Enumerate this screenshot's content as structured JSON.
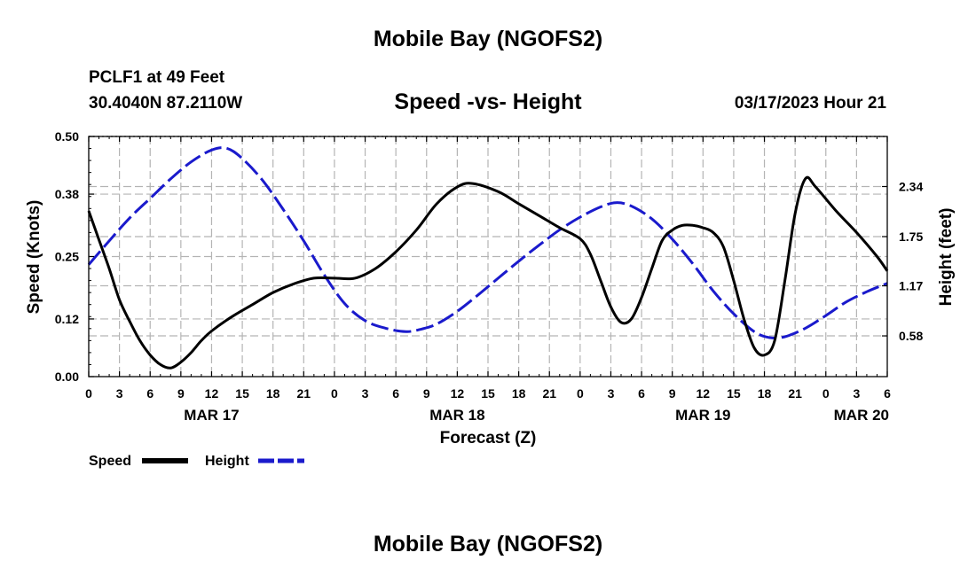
{
  "header": {
    "title": "Mobile Bay (NGOFS2)",
    "station": "PCLF1 at 49 Feet",
    "coords": "30.4040N  87.2110W",
    "timestamp": "03/17/2023 Hour 21"
  },
  "footer": {
    "title": "Mobile Bay (NGOFS2)"
  },
  "colors": {
    "speed": "#000000",
    "height": "#1a1acc",
    "grid": "#b4b4b4"
  },
  "chart_data": {
    "type": "line",
    "title": "Speed -vs- Height",
    "xlabel": "Forecast (Z)",
    "ylabel": "Speed (Knots)",
    "y2label": "Height (feet)",
    "x_unit": "hours since MAR 17 00Z",
    "xlim": [
      0,
      78
    ],
    "ylim": [
      0,
      0.5
    ],
    "y2lim": [
      0.1,
      2.93
    ],
    "x_ticks": [
      0,
      3,
      6,
      9,
      12,
      15,
      18,
      21,
      24,
      27,
      30,
      33,
      36,
      39,
      42,
      45,
      48,
      51,
      54,
      57,
      60,
      63,
      66,
      69,
      72,
      75,
      78
    ],
    "x_tick_labels": [
      "0",
      "3",
      "6",
      "9",
      "12",
      "15",
      "18",
      "21",
      "0",
      "3",
      "6",
      "9",
      "12",
      "15",
      "18",
      "21",
      "0",
      "3",
      "6",
      "9",
      "12",
      "15",
      "18",
      "21",
      "0",
      "3",
      "6"
    ],
    "day_labels": [
      {
        "x": 12,
        "label": "MAR 17"
      },
      {
        "x": 36,
        "label": "MAR 18"
      },
      {
        "x": 60,
        "label": "MAR 19"
      },
      {
        "x": 78,
        "label": "MAR 20"
      }
    ],
    "y_ticks": [
      0,
      0.12,
      0.25,
      0.38,
      0.5
    ],
    "y_tick_labels": [
      "0.00",
      "0.12",
      "0.25",
      "0.38",
      "0.50"
    ],
    "y2_ticks": [
      0.58,
      1.17,
      1.75,
      2.34
    ],
    "y2_tick_labels": [
      "0.58",
      "1.17",
      "1.75",
      "2.34"
    ],
    "legend": [
      "Speed",
      "Height"
    ],
    "series": [
      {
        "name": "Speed",
        "axis": "left",
        "style": "solid",
        "x": [
          0,
          1,
          2,
          3,
          4,
          5,
          6,
          7,
          8,
          9,
          10,
          11,
          12,
          14,
          16,
          18,
          20,
          22,
          24,
          26,
          28,
          30,
          32,
          34,
          36,
          37.5,
          40,
          42,
          44,
          46,
          48,
          49,
          50,
          51,
          52,
          53,
          54,
          55,
          56,
          57,
          58,
          59,
          60,
          61,
          62,
          63,
          64,
          65,
          66,
          67,
          68,
          69,
          70,
          71,
          73,
          75,
          77,
          78
        ],
        "values": [
          0.345,
          0.285,
          0.225,
          0.16,
          0.115,
          0.075,
          0.045,
          0.025,
          0.018,
          0.03,
          0.05,
          0.075,
          0.095,
          0.125,
          0.15,
          0.175,
          0.193,
          0.205,
          0.205,
          0.205,
          0.225,
          0.26,
          0.305,
          0.36,
          0.395,
          0.402,
          0.385,
          0.36,
          0.335,
          0.31,
          0.287,
          0.255,
          0.2,
          0.145,
          0.113,
          0.12,
          0.165,
          0.225,
          0.283,
          0.305,
          0.315,
          0.315,
          0.31,
          0.3,
          0.27,
          0.2,
          0.12,
          0.06,
          0.045,
          0.075,
          0.2,
          0.34,
          0.412,
          0.395,
          0.345,
          0.3,
          0.25,
          0.22
        ]
      },
      {
        "name": "Height",
        "axis": "right",
        "style": "dashed",
        "x": [
          0,
          2,
          4,
          6,
          8,
          10,
          12,
          13.5,
          15,
          17,
          19,
          21,
          23,
          25,
          27,
          29,
          31,
          32.5,
          34,
          36,
          38,
          40,
          42,
          44,
          46,
          48,
          50,
          51.5,
          53,
          55,
          57,
          59,
          61,
          63,
          65,
          66.5,
          68,
          70,
          72,
          74,
          76,
          78
        ],
        "values": [
          1.42,
          1.7,
          1.97,
          2.2,
          2.43,
          2.63,
          2.77,
          2.79,
          2.67,
          2.41,
          2.07,
          1.7,
          1.3,
          0.96,
          0.76,
          0.67,
          0.63,
          0.66,
          0.72,
          0.87,
          1.06,
          1.26,
          1.46,
          1.65,
          1.83,
          1.98,
          2.1,
          2.15,
          2.11,
          1.96,
          1.72,
          1.43,
          1.11,
          0.84,
          0.63,
          0.56,
          0.57,
          0.67,
          0.82,
          0.98,
          1.1,
          1.2
        ]
      }
    ]
  }
}
